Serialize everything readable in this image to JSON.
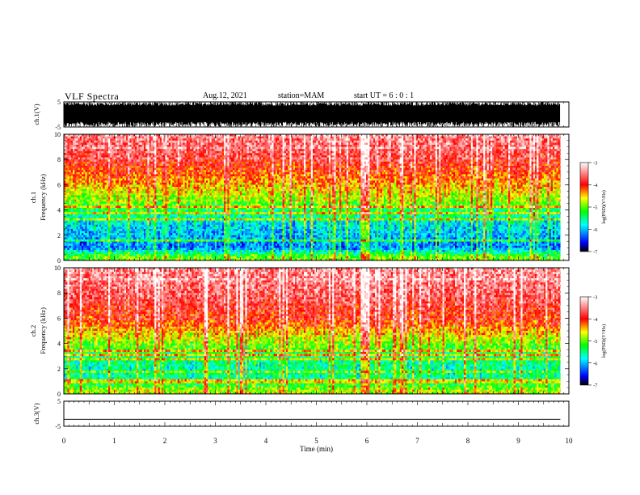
{
  "header": {
    "title": "VLF Spectra",
    "date": "Aug.12, 2021",
    "station": "station=MAM",
    "start_ut": "start UT = 6 : 0 : 1"
  },
  "chart_data": [
    {
      "type": "line",
      "name": "ch1-waveform",
      "ylabel": "ch.1(V)",
      "ylim": [
        -5,
        5
      ],
      "yticks": [
        "5",
        "-5"
      ],
      "xlim": [
        0,
        10
      ],
      "description": "dense noisy waveform, amplitude mostly -5..5 V"
    },
    {
      "type": "heatmap",
      "name": "ch1-spectrogram",
      "ylabel": "ch.1 Frequency (kHz)",
      "ylim": [
        0,
        10
      ],
      "yticks": [
        "0",
        "2",
        "4",
        "6",
        "8",
        "10"
      ],
      "xlim": [
        0,
        10
      ],
      "x_data_end": 9.83,
      "colorbar": {
        "label": "log(PSD)(V²/Hz)",
        "range": [
          -7,
          -3
        ],
        "ticks": [
          "-3",
          "-4",
          "-5",
          "-6",
          "-7"
        ]
      },
      "profile": [
        {
          "f": 0.3,
          "v": -5.0
        },
        {
          "f": 1.0,
          "v": -6.2
        },
        {
          "f": 2.0,
          "v": -6.0
        },
        {
          "f": 3.0,
          "v": -5.8
        },
        {
          "f": 4.0,
          "v": -5.3
        },
        {
          "f": 5.0,
          "v": -4.8
        },
        {
          "f": 6.0,
          "v": -4.4
        },
        {
          "f": 7.0,
          "v": -4.1
        },
        {
          "f": 8.0,
          "v": -3.8
        },
        {
          "f": 9.0,
          "v": -3.6
        },
        {
          "f": 10.0,
          "v": -3.5
        }
      ]
    },
    {
      "type": "heatmap",
      "name": "ch2-spectrogram",
      "ylabel": "ch.2 Frequency (kHz)",
      "ylim": [
        0,
        10
      ],
      "yticks": [
        "0",
        "2",
        "4",
        "6",
        "8",
        "10"
      ],
      "xlim": [
        0,
        10
      ],
      "x_data_end": 9.83,
      "colorbar": {
        "label": "log(PSD)(V²/Hz)",
        "range": [
          -7,
          -3
        ],
        "ticks": [
          "-3",
          "-4",
          "-5",
          "-6",
          "-7"
        ]
      },
      "profile": [
        {
          "f": 0.3,
          "v": -4.8
        },
        {
          "f": 1.0,
          "v": -5.5
        },
        {
          "f": 2.0,
          "v": -5.6
        },
        {
          "f": 3.0,
          "v": -5.4
        },
        {
          "f": 4.0,
          "v": -4.9
        },
        {
          "f": 5.0,
          "v": -4.4
        },
        {
          "f": 6.0,
          "v": -4.0
        },
        {
          "f": 7.0,
          "v": -3.8
        },
        {
          "f": 8.0,
          "v": -3.6
        },
        {
          "f": 9.0,
          "v": -3.5
        },
        {
          "f": 10.0,
          "v": -3.4
        }
      ]
    },
    {
      "type": "line",
      "name": "ch3-waveform",
      "ylabel": "ch.3(V)",
      "ylim": [
        -5,
        5
      ],
      "yticks": [
        "5",
        "-5"
      ],
      "xlim": [
        0,
        10
      ],
      "x": [
        0,
        9.83
      ],
      "y": [
        -2.2,
        -2.2
      ]
    }
  ],
  "x_axis": {
    "label": "Time (min)",
    "range": [
      0,
      10
    ],
    "ticks": [
      "0",
      "1",
      "2",
      "3",
      "4",
      "5",
      "6",
      "7",
      "8",
      "9",
      "10"
    ]
  }
}
